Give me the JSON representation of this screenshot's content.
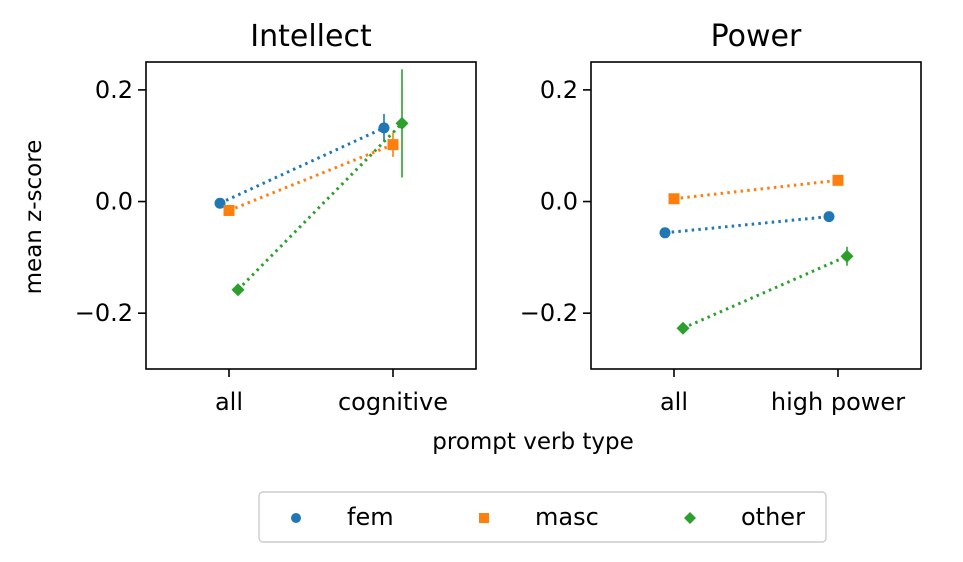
{
  "legend": {
    "placement": "bottom-center",
    "entries": [
      {
        "label": "fem",
        "color": "#1f77b4",
        "marker": "circle"
      },
      {
        "label": "masc",
        "color": "#ff7f0e",
        "marker": "square"
      },
      {
        "label": "other",
        "color": "#2ca02c",
        "marker": "diamond"
      }
    ]
  },
  "shared": {
    "ylabel": "mean z-score",
    "xlabel": "prompt verb type"
  },
  "chart_data": [
    {
      "type": "line",
      "title": "Intellect",
      "categories": [
        "all",
        "cognitive"
      ],
      "ylim": [
        -0.3,
        0.25
      ],
      "yticks": [
        -0.2,
        0.0,
        0.2
      ],
      "ytick_labels": [
        "−0.2",
        "0.0",
        "0.2"
      ],
      "grid": false,
      "series": [
        {
          "name": "fem",
          "color": "#1f77b4",
          "marker": "circle",
          "values": [
            -0.003,
            0.132
          ],
          "errors": [
            0.0,
            0.025
          ]
        },
        {
          "name": "masc",
          "color": "#ff7f0e",
          "marker": "square",
          "values": [
            -0.016,
            0.102
          ],
          "errors": [
            0.0,
            0.022
          ]
        },
        {
          "name": "other",
          "color": "#2ca02c",
          "marker": "diamond",
          "values": [
            -0.158,
            0.14
          ],
          "errors": [
            0.0,
            0.097
          ]
        }
      ]
    },
    {
      "type": "line",
      "title": "Power",
      "categories": [
        "all",
        "high power"
      ],
      "ylim": [
        -0.3,
        0.25
      ],
      "yticks": [
        -0.2,
        0.0,
        0.2
      ],
      "ytick_labels": [
        "−0.2",
        "0.0",
        "0.2"
      ],
      "grid": false,
      "series": [
        {
          "name": "fem",
          "color": "#1f77b4",
          "marker": "circle",
          "values": [
            -0.056,
            -0.027
          ],
          "errors": [
            0.0,
            0.0
          ]
        },
        {
          "name": "masc",
          "color": "#ff7f0e",
          "marker": "square",
          "values": [
            0.005,
            0.038
          ],
          "errors": [
            0.0,
            0.0
          ]
        },
        {
          "name": "other",
          "color": "#2ca02c",
          "marker": "diamond",
          "values": [
            -0.227,
            -0.098
          ],
          "errors": [
            0.0,
            0.017
          ]
        }
      ]
    }
  ]
}
